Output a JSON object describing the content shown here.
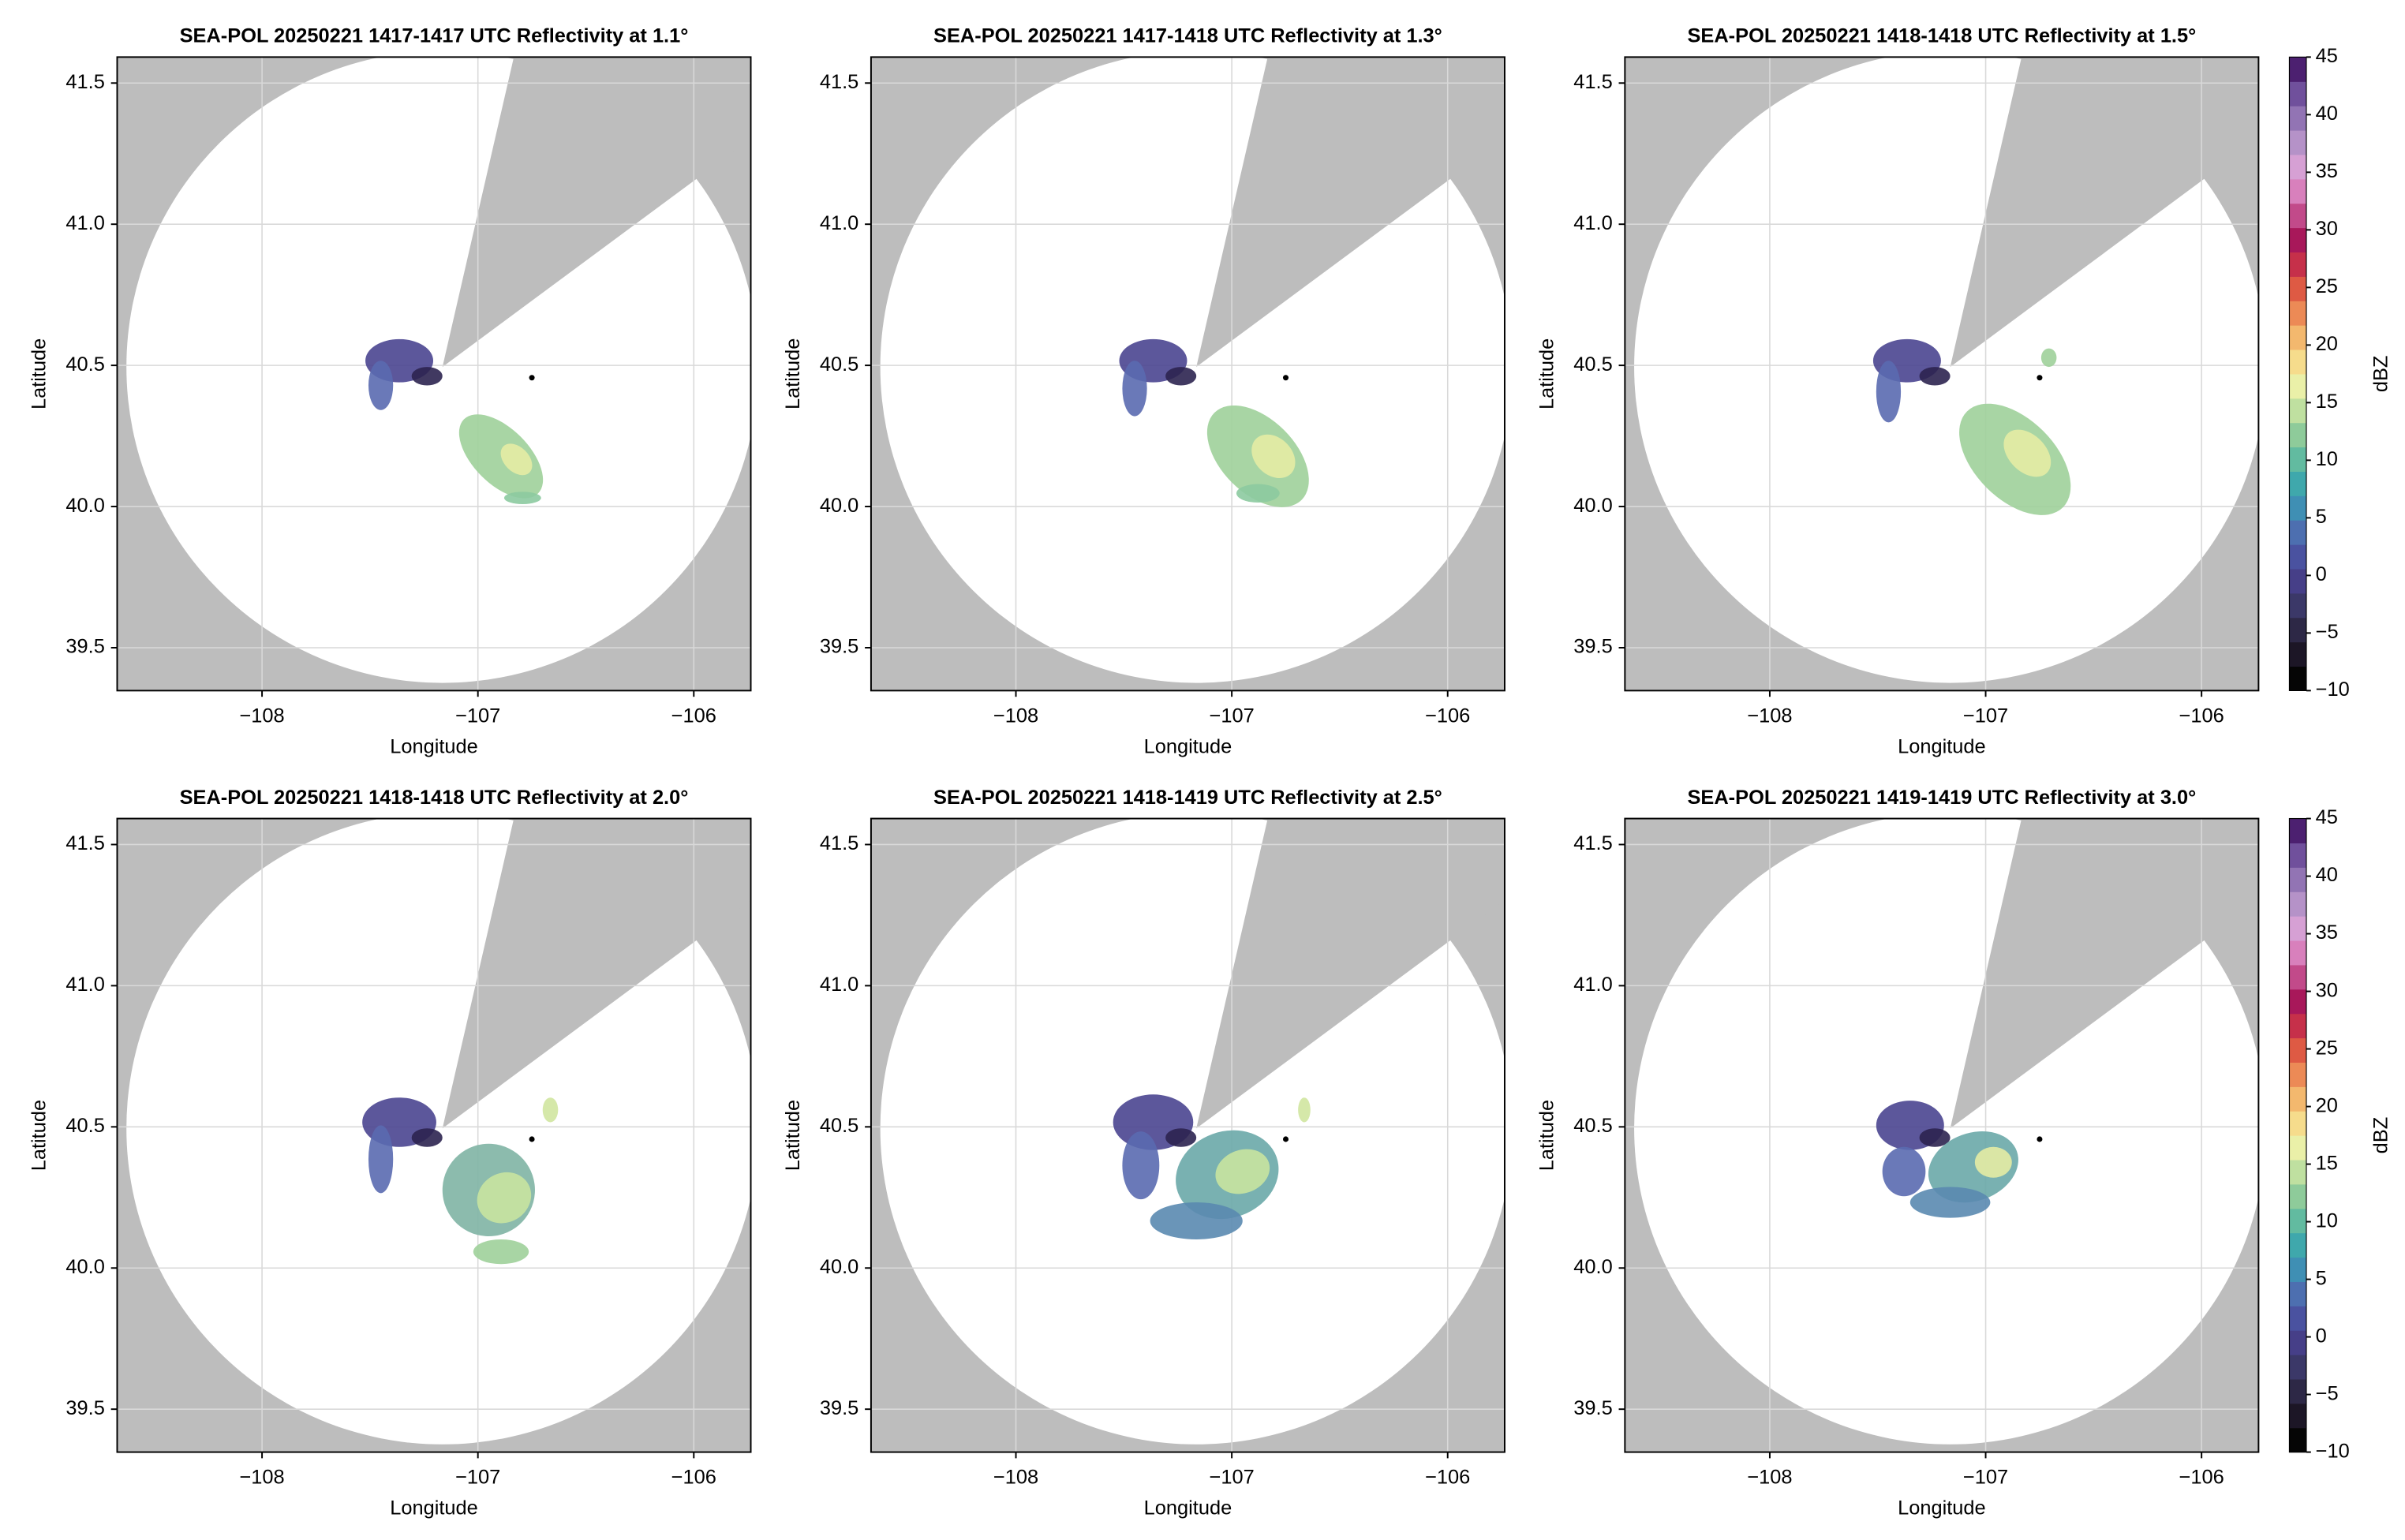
{
  "chart_data": [
    {
      "type": "heatmap",
      "title": "SEA-POL 20250221 1417-1417 UTC Reflectivity at 1.1°",
      "x_label": "Longitude",
      "y_label": "Latitude",
      "xlim": [
        -108.671,
        -105.736
      ],
      "ylim": [
        39.348,
        41.592
      ],
      "xticks": [
        {
          "value": -108,
          "label": "−108"
        },
        {
          "value": -107,
          "label": "−107"
        },
        {
          "value": -106,
          "label": "−106"
        }
      ],
      "yticks": [
        39.5,
        {
          "value": 40.0,
          "label": "40.0"
        },
        40.5,
        {
          "value": 41.0,
          "label": "41.0"
        },
        41.5
      ],
      "grid": true
    },
    {
      "type": "heatmap",
      "title": "SEA-POL 20250221 1417-1418 UTC Reflectivity at 1.3°",
      "x_label": "Longitude",
      "y_label": "Latitude",
      "xlim": [
        -108.671,
        -105.736
      ],
      "ylim": [
        39.348,
        41.592
      ],
      "xticks": [
        {
          "value": -108,
          "label": "−108"
        },
        {
          "value": -107,
          "label": "−107"
        },
        {
          "value": -106,
          "label": "−106"
        }
      ],
      "yticks": [
        39.5,
        {
          "value": 40.0,
          "label": "40.0"
        },
        40.5,
        {
          "value": 41.0,
          "label": "41.0"
        },
        41.5
      ],
      "grid": true
    },
    {
      "type": "heatmap",
      "title": "SEA-POL 20250221 1418-1418 UTC Reflectivity at 1.5°",
      "x_label": "Longitude",
      "y_label": "Latitude",
      "xlim": [
        -108.671,
        -105.736
      ],
      "ylim": [
        39.348,
        41.592
      ],
      "xticks": [
        {
          "value": -108,
          "label": "−108"
        },
        {
          "value": -107,
          "label": "−107"
        },
        {
          "value": -106,
          "label": "−106"
        }
      ],
      "yticks": [
        39.5,
        {
          "value": 40.0,
          "label": "40.0"
        },
        40.5,
        {
          "value": 41.0,
          "label": "41.0"
        },
        41.5
      ],
      "grid": true,
      "colorbar": {
        "label": "dBZ",
        "lim": [
          -10,
          45
        ],
        "ticks": [
          {
            "value": -10,
            "label": "−10"
          },
          {
            "value": -5,
            "label": "−5"
          },
          0,
          5,
          10,
          15,
          20,
          25,
          30,
          35,
          40,
          45
        ]
      }
    },
    {
      "type": "heatmap",
      "title": "SEA-POL 20250221 1418-1418 UTC Reflectivity at 2.0°",
      "x_label": "Longitude",
      "y_label": "Latitude",
      "xlim": [
        -108.671,
        -105.736
      ],
      "ylim": [
        39.348,
        41.592
      ],
      "xticks": [
        {
          "value": -108,
          "label": "−108"
        },
        {
          "value": -107,
          "label": "−107"
        },
        {
          "value": -106,
          "label": "−106"
        }
      ],
      "yticks": [
        39.5,
        {
          "value": 40.0,
          "label": "40.0"
        },
        40.5,
        {
          "value": 41.0,
          "label": "41.0"
        },
        41.5
      ],
      "grid": true
    },
    {
      "type": "heatmap",
      "title": "SEA-POL 20250221 1418-1419 UTC Reflectivity at 2.5°",
      "x_label": "Longitude",
      "y_label": "Latitude",
      "xlim": [
        -108.671,
        -105.736
      ],
      "ylim": [
        39.348,
        41.592
      ],
      "xticks": [
        {
          "value": -108,
          "label": "−108"
        },
        {
          "value": -107,
          "label": "−107"
        },
        {
          "value": -106,
          "label": "−106"
        }
      ],
      "yticks": [
        39.5,
        {
          "value": 40.0,
          "label": "40.0"
        },
        40.5,
        {
          "value": 41.0,
          "label": "41.0"
        },
        41.5
      ],
      "grid": true
    },
    {
      "type": "heatmap",
      "title": "SEA-POL 20250221 1419-1419 UTC Reflectivity at 3.0°",
      "x_label": "Longitude",
      "y_label": "Latitude",
      "xlim": [
        -108.671,
        -105.736
      ],
      "ylim": [
        39.348,
        41.592
      ],
      "xticks": [
        {
          "value": -108,
          "label": "−108"
        },
        {
          "value": -107,
          "label": "−107"
        },
        {
          "value": -106,
          "label": "−106"
        }
      ],
      "yticks": [
        39.5,
        {
          "value": 40.0,
          "label": "40.0"
        },
        40.5,
        {
          "value": 41.0,
          "label": "41.0"
        },
        41.5
      ],
      "grid": true,
      "colorbar": {
        "label": "dBZ",
        "lim": [
          -10,
          45
        ],
        "ticks": [
          {
            "value": -10,
            "label": "−10"
          },
          {
            "value": -5,
            "label": "−5"
          },
          0,
          5,
          10,
          15,
          20,
          25,
          30,
          35,
          40,
          45
        ]
      }
    }
  ]
}
